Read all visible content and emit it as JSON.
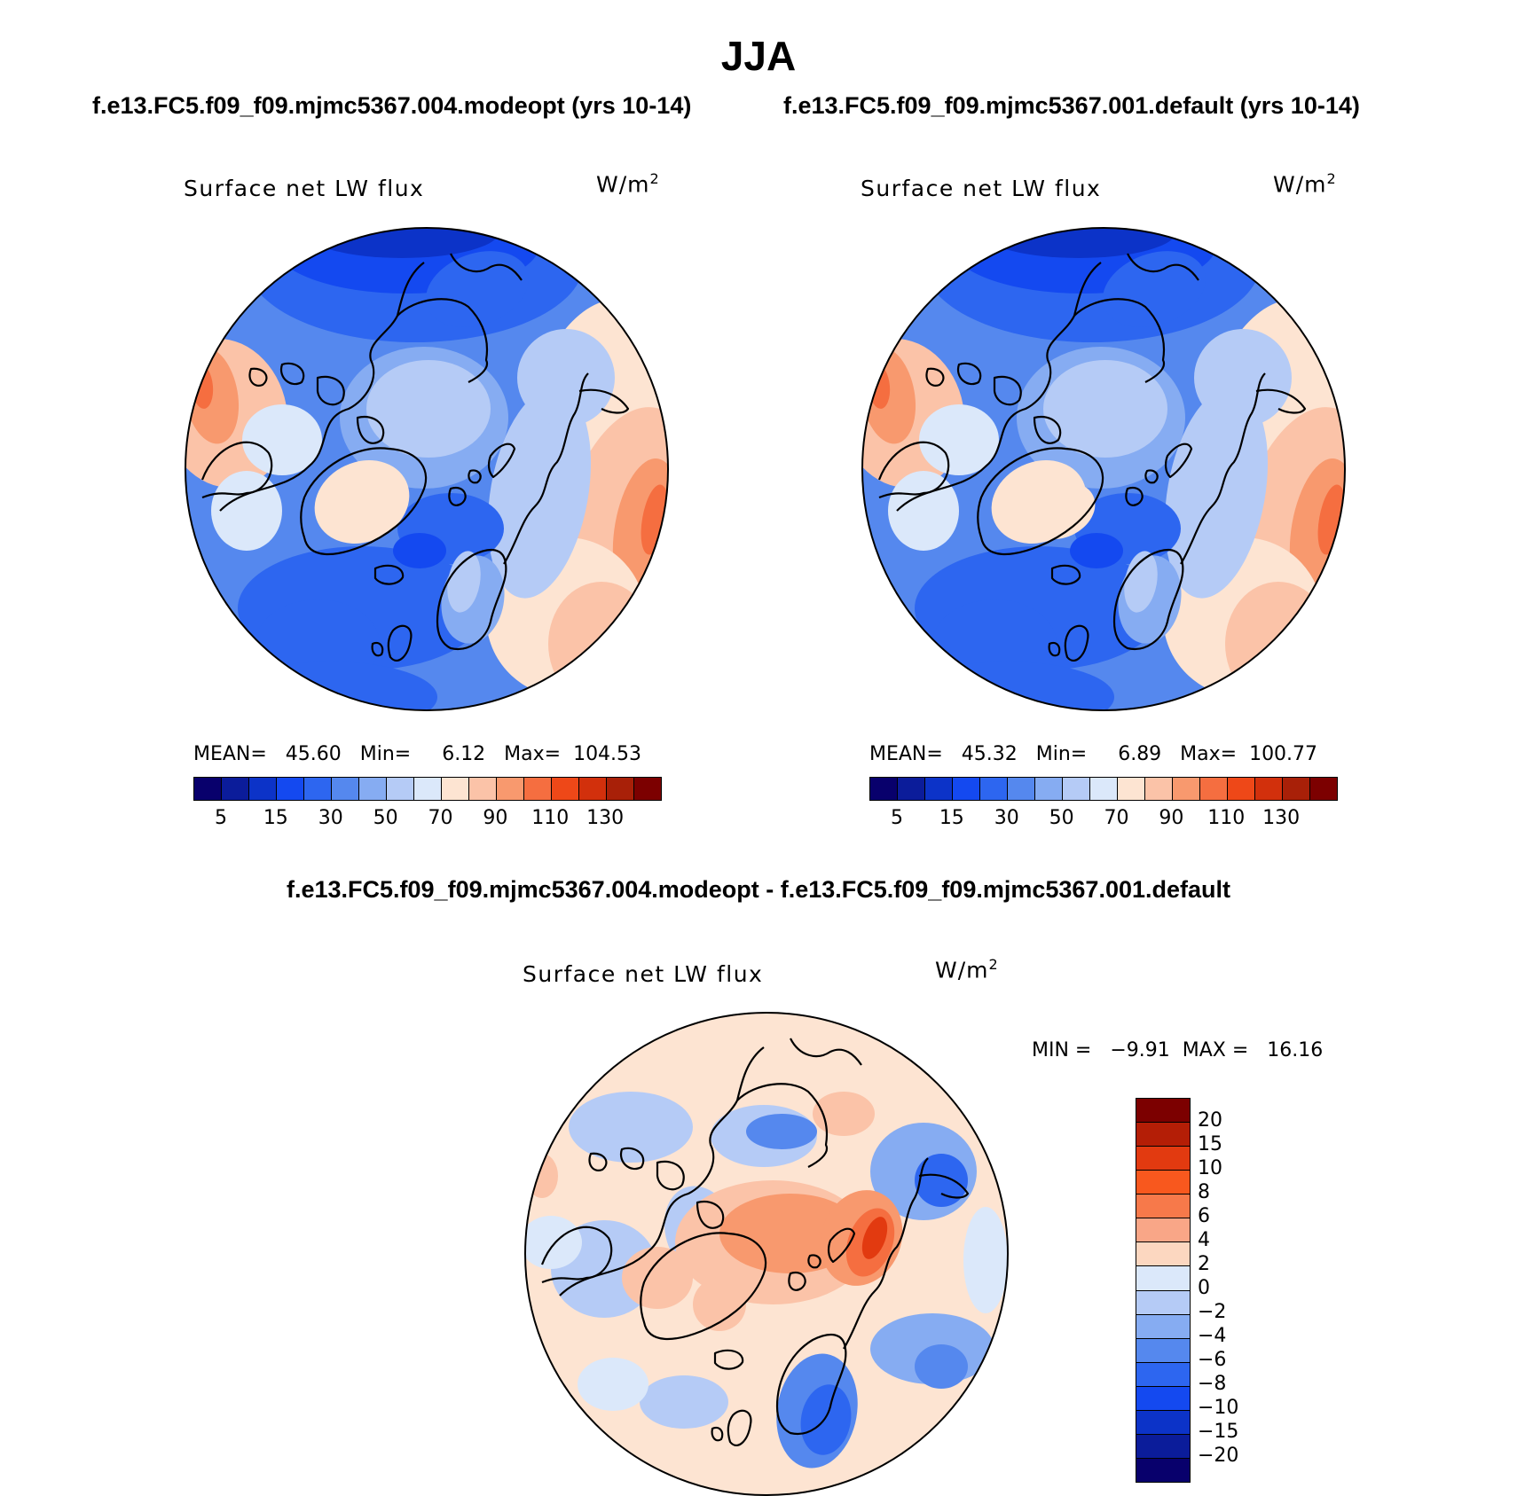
{
  "title": "JJA",
  "case_titles": [
    "f.e13.FC5.f09_f09.mjmc5367.004.modeopt (yrs 10-14)",
    "f.e13.FC5.f09_f09.mjmc5367.001.default (yrs 10-14)"
  ],
  "diff_title": "f.e13.FC5.f09_f09.mjmc5367.004.modeopt - f.e13.FC5.f09_f09.mjmc5367.001.default",
  "panels": [
    {
      "variable": "Surface net LW flux",
      "units_base": "W/m",
      "units_exp": "2",
      "stats": "MEAN=   45.60   Min=     6.12   Max=  104.53"
    },
    {
      "variable": "Surface net LW flux",
      "units_base": "W/m",
      "units_exp": "2",
      "stats": "MEAN=   45.32   Min=     6.89   Max=  100.77"
    },
    {
      "variable": "Surface net LW flux",
      "units_base": "W/m",
      "units_exp": "2",
      "stats": "MIN =   −9.91  MAX =   16.16"
    }
  ],
  "colorbar_abs": {
    "colors": [
      "#08006c",
      "#0b1c9a",
      "#0c33c8",
      "#1449f0",
      "#2d66f0",
      "#5588ee",
      "#86acf2",
      "#b5cbf6",
      "#dbe8fa",
      "#fde4d2",
      "#fbc3a8",
      "#f8996e",
      "#f56e40",
      "#ee4818",
      "#d2300c",
      "#a82008",
      "#7c0000"
    ],
    "tick_labels": [
      "5",
      "15",
      "30",
      "50",
      "70",
      "90",
      "110",
      "130"
    ]
  },
  "colorbar_diff": {
    "colors": [
      "#7c0000",
      "#b41e06",
      "#e23a10",
      "#f8581e",
      "#f7794a",
      "#f9a687",
      "#fcd7c0",
      "#dbe8fa",
      "#b5cbf6",
      "#86acf2",
      "#5588ee",
      "#2d66f0",
      "#1449f0",
      "#0c33c8",
      "#0b1c9a",
      "#08006c"
    ],
    "tick_labels": [
      "20",
      "15",
      "10",
      "8",
      "6",
      "4",
      "2",
      "0",
      "−2",
      "−4",
      "−6",
      "−8",
      "−10",
      "−15",
      "−20"
    ]
  },
  "chart_data": [
    {
      "type": "heatmap",
      "title": "Surface net LW flux",
      "units": "W/m^2",
      "projection": "north polar stereographic",
      "stats": {
        "mean": 45.6,
        "min": 6.12,
        "max": 104.53
      },
      "levels": [
        5,
        10,
        15,
        20,
        30,
        40,
        50,
        60,
        70,
        80,
        90,
        100,
        110,
        120,
        130
      ]
    },
    {
      "type": "heatmap",
      "title": "Surface net LW flux",
      "units": "W/m^2",
      "projection": "north polar stereographic",
      "stats": {
        "mean": 45.32,
        "min": 6.89,
        "max": 100.77
      },
      "levels": [
        5,
        10,
        15,
        20,
        30,
        40,
        50,
        60,
        70,
        80,
        90,
        100,
        110,
        120,
        130
      ]
    },
    {
      "type": "heatmap",
      "title": "Surface net LW flux",
      "units": "W/m^2",
      "projection": "north polar stereographic",
      "stats": {
        "min": -9.91,
        "max": 16.16
      },
      "levels": [
        -20,
        -15,
        -10,
        -8,
        -6,
        -4,
        -2,
        0,
        2,
        4,
        6,
        8,
        10,
        15,
        20
      ]
    }
  ]
}
